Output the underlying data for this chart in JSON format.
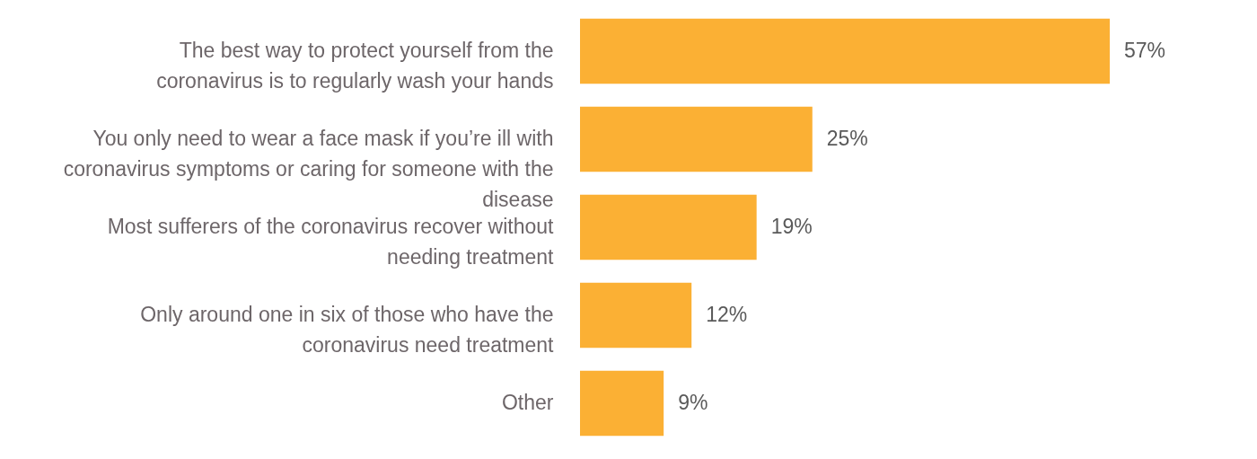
{
  "chart_data": {
    "type": "bar",
    "orientation": "horizontal",
    "categories": [
      "The best way to protect yourself from the coronavirus is to regularly wash your hands",
      "You only need to wear a face mask if you’re ill with coronavirus symptoms or caring for someone with the disease",
      "Most sufferers of the coronavirus recover without needing treatment",
      "Only around one in six of those who have the coronavirus need treatment",
      "Other"
    ],
    "values": [
      57,
      25,
      19,
      12,
      9
    ],
    "value_labels": [
      "57%",
      "25%",
      "19%",
      "12%",
      "9%"
    ],
    "color": "#fbb034"
  }
}
